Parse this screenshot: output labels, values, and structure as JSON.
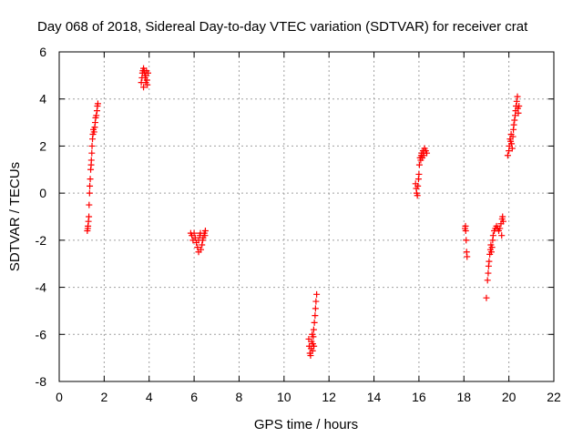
{
  "chart_data": {
    "type": "scatter",
    "title": "Day 068 of 2018, Sidereal Day-to-day VTEC variation (SDTVAR) for receiver crat",
    "xlabel": "GPS time / hours",
    "ylabel": "SDTVAR / TECUs",
    "xlim": [
      0,
      22
    ],
    "ylim": [
      -8,
      6
    ],
    "xticks": [
      0,
      2,
      4,
      6,
      8,
      10,
      12,
      14,
      16,
      18,
      20,
      22
    ],
    "yticks": [
      -8,
      -6,
      -4,
      -2,
      0,
      2,
      4,
      6
    ],
    "grid": true,
    "marker": "+",
    "color": "#ff0000",
    "series": [
      {
        "name": "SDTVAR",
        "points": [
          [
            1.25,
            -1.6
          ],
          [
            1.27,
            -1.5
          ],
          [
            1.28,
            -1.4
          ],
          [
            1.3,
            -1.2
          ],
          [
            1.32,
            -1.0
          ],
          [
            1.33,
            -0.5
          ],
          [
            1.35,
            0.0
          ],
          [
            1.36,
            0.3
          ],
          [
            1.38,
            0.6
          ],
          [
            1.4,
            1.0
          ],
          [
            1.42,
            1.2
          ],
          [
            1.43,
            1.4
          ],
          [
            1.45,
            1.7
          ],
          [
            1.46,
            2.0
          ],
          [
            1.48,
            2.3
          ],
          [
            1.5,
            2.5
          ],
          [
            1.52,
            2.7
          ],
          [
            1.55,
            2.6
          ],
          [
            1.58,
            2.8
          ],
          [
            1.6,
            3.0
          ],
          [
            1.62,
            3.2
          ],
          [
            1.65,
            3.3
          ],
          [
            1.68,
            3.5
          ],
          [
            1.7,
            3.7
          ],
          [
            1.72,
            3.8
          ],
          [
            3.65,
            4.7
          ],
          [
            3.68,
            4.9
          ],
          [
            3.7,
            5.1
          ],
          [
            3.72,
            5.2
          ],
          [
            3.75,
            5.3
          ],
          [
            3.78,
            5.2
          ],
          [
            3.8,
            5.1
          ],
          [
            3.82,
            4.9
          ],
          [
            3.85,
            5.0
          ],
          [
            3.88,
            5.2
          ],
          [
            3.9,
            4.8
          ],
          [
            3.92,
            4.6
          ],
          [
            3.95,
            5.1
          ],
          [
            3.75,
            4.5
          ],
          [
            3.85,
            4.7
          ],
          [
            5.85,
            -1.7
          ],
          [
            5.9,
            -1.8
          ],
          [
            5.95,
            -2.0
          ],
          [
            6.0,
            -1.7
          ],
          [
            6.05,
            -1.9
          ],
          [
            6.1,
            -2.1
          ],
          [
            6.15,
            -2.3
          ],
          [
            6.2,
            -2.0
          ],
          [
            6.25,
            -1.8
          ],
          [
            6.3,
            -2.4
          ],
          [
            6.35,
            -2.2
          ],
          [
            6.4,
            -1.9
          ],
          [
            6.45,
            -1.7
          ],
          [
            6.5,
            -1.6
          ],
          [
            6.2,
            -2.5
          ],
          [
            6.28,
            -1.7
          ],
          [
            6.38,
            -2.0
          ],
          [
            6.48,
            -1.8
          ],
          [
            11.1,
            -6.2
          ],
          [
            11.12,
            -6.5
          ],
          [
            11.15,
            -6.8
          ],
          [
            11.18,
            -6.9
          ],
          [
            11.2,
            -6.6
          ],
          [
            11.22,
            -6.3
          ],
          [
            11.25,
            -6.0
          ],
          [
            11.28,
            -6.4
          ],
          [
            11.3,
            -6.1
          ],
          [
            11.32,
            -5.8
          ],
          [
            11.35,
            -5.5
          ],
          [
            11.38,
            -5.2
          ],
          [
            11.4,
            -4.9
          ],
          [
            11.42,
            -4.6
          ],
          [
            11.45,
            -4.3
          ],
          [
            11.33,
            -6.5
          ],
          [
            11.27,
            -6.7
          ],
          [
            15.85,
            0.4
          ],
          [
            15.88,
            0.2
          ],
          [
            15.9,
            0.0
          ],
          [
            15.93,
            -0.1
          ],
          [
            15.95,
            0.3
          ],
          [
            15.98,
            0.6
          ],
          [
            16.0,
            0.8
          ],
          [
            16.02,
            1.2
          ],
          [
            16.05,
            1.5
          ],
          [
            16.08,
            1.4
          ],
          [
            16.1,
            1.6
          ],
          [
            16.12,
            1.7
          ],
          [
            16.15,
            1.5
          ],
          [
            16.18,
            1.8
          ],
          [
            16.2,
            1.7
          ],
          [
            16.25,
            1.9
          ],
          [
            16.3,
            1.8
          ],
          [
            16.35,
            1.7
          ],
          [
            16.22,
            1.6
          ],
          [
            18.05,
            -1.5
          ],
          [
            18.07,
            -1.4
          ],
          [
            18.08,
            -1.6
          ],
          [
            18.1,
            -2.0
          ],
          [
            18.12,
            -2.5
          ],
          [
            18.14,
            -2.7
          ],
          [
            19.0,
            -4.45
          ],
          [
            19.05,
            -3.7
          ],
          [
            19.08,
            -3.4
          ],
          [
            19.1,
            -3.1
          ],
          [
            19.12,
            -2.9
          ],
          [
            19.15,
            -2.6
          ],
          [
            19.18,
            -2.4
          ],
          [
            19.2,
            -2.2
          ],
          [
            19.22,
            -2.5
          ],
          [
            19.25,
            -2.3
          ],
          [
            19.28,
            -2.0
          ],
          [
            19.3,
            -1.8
          ],
          [
            19.35,
            -1.6
          ],
          [
            19.4,
            -1.5
          ],
          [
            19.45,
            -1.4
          ],
          [
            19.5,
            -1.5
          ],
          [
            19.55,
            -1.6
          ],
          [
            19.6,
            -1.5
          ],
          [
            19.65,
            -1.3
          ],
          [
            19.7,
            -1.1
          ],
          [
            19.72,
            -1.0
          ],
          [
            19.75,
            -1.2
          ],
          [
            19.68,
            -1.8
          ],
          [
            19.95,
            1.6
          ],
          [
            20.0,
            1.8
          ],
          [
            20.02,
            2.0
          ],
          [
            20.05,
            2.3
          ],
          [
            20.08,
            2.2
          ],
          [
            20.1,
            2.5
          ],
          [
            20.12,
            2.1
          ],
          [
            20.15,
            1.9
          ],
          [
            20.18,
            2.4
          ],
          [
            20.2,
            2.7
          ],
          [
            20.22,
            2.9
          ],
          [
            20.25,
            3.1
          ],
          [
            20.28,
            3.3
          ],
          [
            20.3,
            3.5
          ],
          [
            20.32,
            3.7
          ],
          [
            20.35,
            3.9
          ],
          [
            20.38,
            4.1
          ],
          [
            20.4,
            3.6
          ],
          [
            20.42,
            3.4
          ],
          [
            20.45,
            3.7
          ]
        ]
      }
    ]
  }
}
